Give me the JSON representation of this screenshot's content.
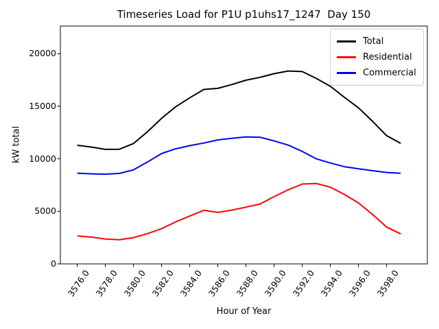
{
  "figure": {
    "title": "Timeseries Load for P1U p1uhs17_1247  Day 150",
    "xlabel": "Hour of Year",
    "ylabel": "kW total"
  },
  "legend": {
    "position": "upper right",
    "items": [
      {
        "label": "Total",
        "color": "#000000"
      },
      {
        "label": "Residential",
        "color": "#ff0000"
      },
      {
        "label": "Commercial",
        "color": "#0000ff"
      }
    ]
  },
  "chart_data": {
    "type": "line",
    "title": "Timeseries Load for P1U p1uhs17_1247  Day 150",
    "xlabel": "Hour of Year",
    "ylabel": "kW total",
    "x": [
      3576,
      3577,
      3578,
      3579,
      3580,
      3581,
      3582,
      3583,
      3584,
      3585,
      3586,
      3587,
      3588,
      3589,
      3590,
      3591,
      3592,
      3593,
      3594,
      3595,
      3596,
      3597,
      3598,
      3599
    ],
    "series": [
      {
        "name": "Total",
        "color": "#000000",
        "values": [
          11280,
          11120,
          10900,
          10910,
          11450,
          12580,
          13850,
          14950,
          15800,
          16600,
          16700,
          17070,
          17480,
          17750,
          18100,
          18350,
          18300,
          17650,
          16900,
          15850,
          14850,
          13570,
          12200,
          11470
        ]
      },
      {
        "name": "Residential",
        "color": "#ff0000",
        "values": [
          2660,
          2550,
          2360,
          2300,
          2500,
          2880,
          3350,
          4000,
          4550,
          5100,
          4900,
          5120,
          5400,
          5700,
          6400,
          7050,
          7600,
          7650,
          7300,
          6600,
          5800,
          4700,
          3500,
          2850
        ]
      },
      {
        "name": "Commercial",
        "color": "#0000ff",
        "values": [
          8620,
          8570,
          8540,
          8610,
          8950,
          9700,
          10500,
          10950,
          11250,
          11500,
          11800,
          11950,
          12080,
          12050,
          11700,
          11300,
          10700,
          10000,
          9600,
          9250,
          9050,
          8870,
          8700,
          8620
        ]
      }
    ],
    "xtick_labels": [
      "3576.0",
      "3578.0",
      "3580.0",
      "3582.0",
      "3584.0",
      "3586.0",
      "3588.0",
      "3590.0",
      "3592.0",
      "3594.0",
      "3596.0",
      "3598.0"
    ],
    "ytick_labels": [
      "0",
      "5000",
      "10000",
      "15000",
      "20000"
    ],
    "yticks": [
      0,
      5000,
      10000,
      15000,
      20000
    ],
    "xlim": [
      3574.8,
      3600.9
    ],
    "ylim": [
      0,
      22630
    ],
    "grid": false,
    "legend_position": "upper right"
  }
}
